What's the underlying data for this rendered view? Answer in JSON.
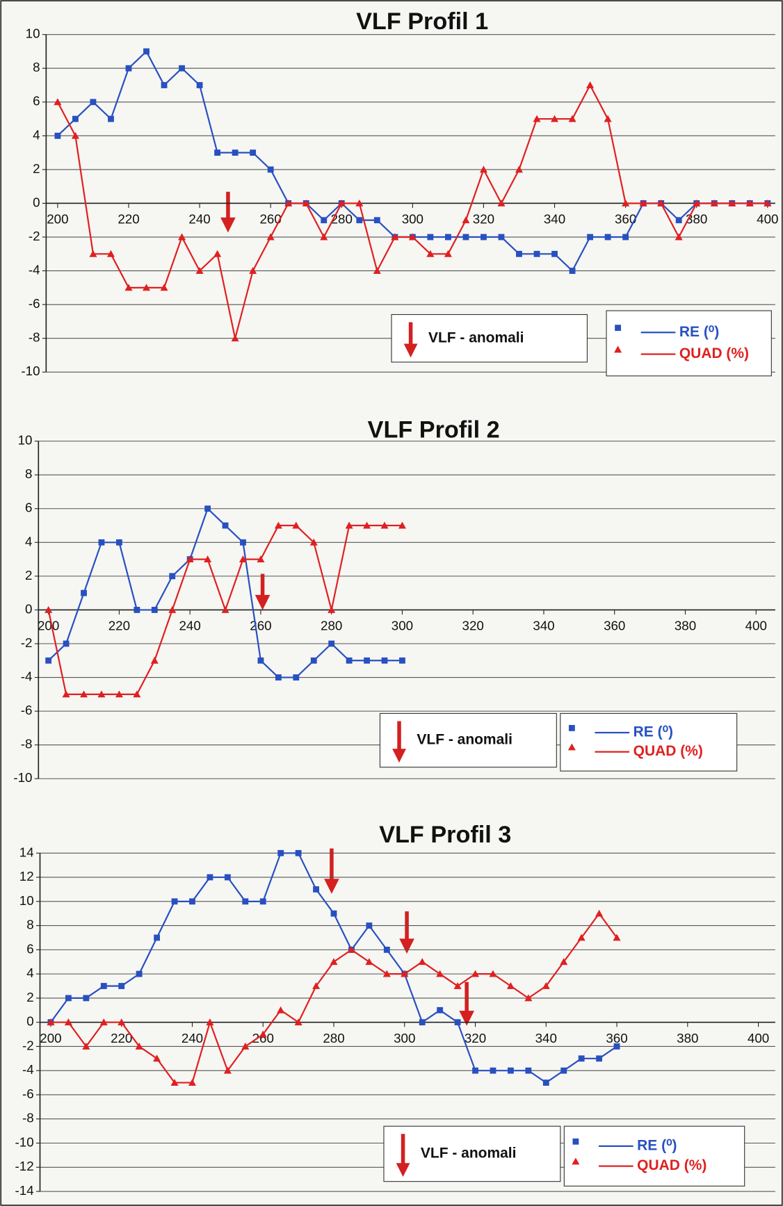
{
  "chart_data": [
    {
      "type": "line",
      "title": "VLF  Profil 1",
      "annotation": "VLF - anomali",
      "x": [
        200,
        205,
        210,
        215,
        220,
        225,
        230,
        235,
        240,
        245,
        250,
        255,
        260,
        265,
        270,
        275,
        280,
        285,
        290,
        295,
        300,
        305,
        310,
        315,
        320,
        325,
        330,
        335,
        340,
        345,
        350,
        355,
        360,
        365,
        370,
        375,
        380,
        385,
        390,
        395,
        400
      ],
      "series": [
        {
          "name": "RE (⁰)",
          "color": "#2850c0",
          "marker": "square",
          "values": [
            4,
            5,
            6,
            5,
            8,
            9,
            7,
            8,
            7,
            3,
            3,
            3,
            2,
            0,
            0,
            -1,
            0,
            -1,
            -1,
            -2,
            -2,
            -2,
            -2,
            -2,
            -2,
            -2,
            -3,
            -3,
            -3,
            -4,
            -2,
            -2,
            -2,
            0,
            0,
            -1,
            0,
            0,
            0,
            0,
            0
          ]
        },
        {
          "name": "QUAD  (%)",
          "color": "#e02020",
          "marker": "triangle",
          "values": [
            6,
            4,
            -3,
            -3,
            -5,
            -5,
            -5,
            -2,
            -4,
            -3,
            -8,
            -4,
            -2,
            0,
            0,
            -2,
            0,
            0,
            -4,
            -2,
            -2,
            -3,
            -3,
            -1,
            2,
            0,
            2,
            5,
            5,
            5,
            7,
            5,
            0,
            0,
            0,
            -2,
            0,
            0,
            0,
            0,
            0
          ]
        }
      ],
      "xlim": [
        200,
        400
      ],
      "xticks": [
        200,
        220,
        240,
        260,
        280,
        300,
        320,
        340,
        360,
        380,
        400
      ],
      "ylim": [
        -10,
        10
      ],
      "yticks": [
        -10,
        -8,
        -6,
        -4,
        -2,
        0,
        2,
        4,
        6,
        8,
        10
      ],
      "grid": true,
      "legend": "lower right"
    },
    {
      "type": "line",
      "title": "VLF  Profil 2",
      "annotation": "VLF - anomali",
      "x": [
        200,
        205,
        210,
        215,
        220,
        225,
        230,
        235,
        240,
        245,
        250,
        255,
        260,
        265,
        270,
        275,
        280,
        285,
        290,
        295,
        300
      ],
      "series": [
        {
          "name": "RE (⁰)",
          "color": "#2850c0",
          "marker": "square",
          "values": [
            -3,
            -2,
            1,
            4,
            4,
            0,
            0,
            2,
            3,
            6,
            5,
            4,
            -3,
            -4,
            -4,
            -3,
            -2,
            -3,
            -3,
            -3,
            -3
          ]
        },
        {
          "name": "QUAD  (%)",
          "color": "#e02020",
          "marker": "triangle",
          "values": [
            0,
            -5,
            -5,
            -5,
            -5,
            -5,
            -3,
            0,
            3,
            3,
            0,
            3,
            3,
            5,
            5,
            4,
            0,
            5,
            5,
            5,
            5
          ]
        }
      ],
      "xlim": [
        200,
        400
      ],
      "xticks": [
        200,
        220,
        240,
        260,
        280,
        300,
        320,
        340,
        360,
        380,
        400
      ],
      "ylim": [
        -10,
        10
      ],
      "yticks": [
        -10,
        -8,
        -6,
        -4,
        -2,
        0,
        2,
        4,
        6,
        8,
        10
      ],
      "grid": true,
      "legend": "lower right"
    },
    {
      "type": "line",
      "title": "VLF  Profil 3",
      "annotation": "VLF - anomali",
      "x": [
        200,
        205,
        210,
        215,
        220,
        225,
        230,
        235,
        240,
        245,
        250,
        255,
        260,
        265,
        270,
        275,
        280,
        285,
        290,
        295,
        300,
        305,
        310,
        315,
        320,
        325,
        330,
        335,
        340,
        345,
        350,
        355,
        360
      ],
      "series": [
        {
          "name": "RE (⁰)",
          "color": "#2850c0",
          "marker": "square",
          "values": [
            0,
            2,
            2,
            3,
            3,
            4,
            7,
            10,
            10,
            12,
            12,
            10,
            10,
            14,
            14,
            11,
            9,
            6,
            8,
            6,
            4,
            0,
            1,
            0,
            -4,
            -4,
            -4,
            -4,
            -5,
            -4,
            -3,
            -3,
            -2
          ]
        },
        {
          "name": "QUAD  (%)",
          "color": "#e02020",
          "marker": "triangle",
          "values": [
            0,
            0,
            -2,
            0,
            0,
            -2,
            -3,
            -5,
            -5,
            0,
            -4,
            -2,
            -1,
            1,
            0,
            3,
            5,
            6,
            5,
            4,
            4,
            5,
            4,
            3,
            4,
            4,
            3,
            2,
            3,
            5,
            7,
            9,
            7
          ]
        }
      ],
      "xlim": [
        200,
        400
      ],
      "xticks": [
        200,
        220,
        240,
        260,
        280,
        300,
        320,
        340,
        360,
        380,
        400
      ],
      "ylim": [
        -14,
        14
      ],
      "yticks": [
        -14,
        -12,
        -10,
        -8,
        -6,
        -4,
        -2,
        0,
        2,
        4,
        6,
        8,
        10,
        12,
        14
      ],
      "grid": true,
      "legend": "lower right"
    }
  ]
}
